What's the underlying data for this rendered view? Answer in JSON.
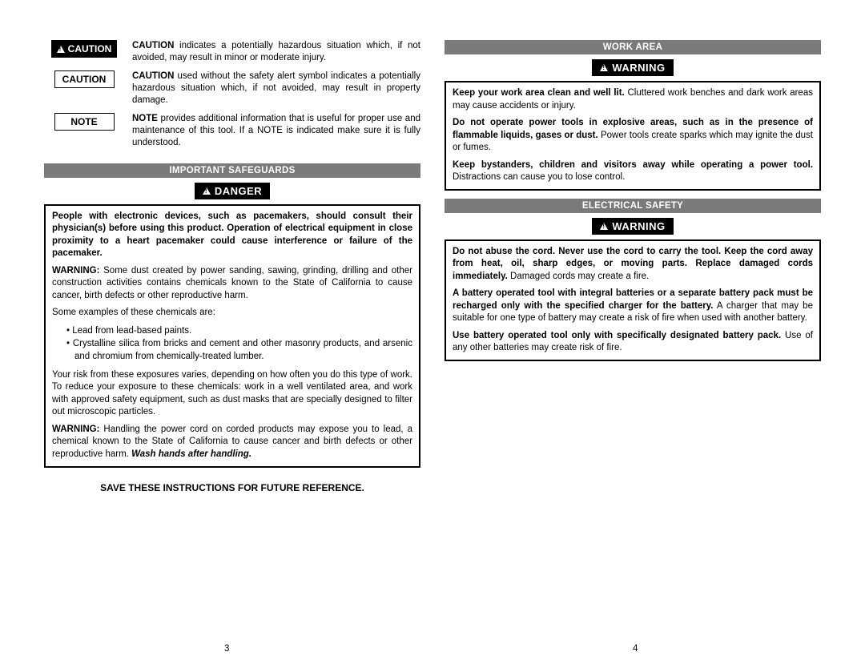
{
  "left": {
    "defs": [
      {
        "label": "CAUTION",
        "style": "alert",
        "text": "<b>CAUTION</b> indicates a potentially hazardous situation which, if not avoided, may result in minor or moderate injury."
      },
      {
        "label": "CAUTION",
        "style": "box",
        "text": "<b>CAUTION</b> used without the safety alert symbol indicates a potentially hazardous situation which, if not avoided, may result in property damage."
      },
      {
        "label": "NOTE",
        "style": "box",
        "text": "<b>NOTE</b> provides additional information that is useful for proper use and maintenance of this tool. If a NOTE is indicated make sure it is fully understood."
      }
    ],
    "section_title": "IMPORTANT SAFEGUARDS",
    "alert_label": "DANGER",
    "box_paras": [
      "<b>People with electronic devices, such as pacemakers, should consult their physician(s) before using this product. Operation of electrical equipment in close proximity to a heart pacemaker could cause interference or failure of the pacemaker.</b>",
      "<b>WARNING:</b> Some dust created by power sanding, sawing, grinding, drilling and other construction activities contains chemicals known to the State of California to cause cancer, birth defects or other reproductive harm."
    ],
    "examples_intro": "Some examples of these chemicals are:",
    "examples": [
      "• Lead from lead-based paints.",
      "• Crystalline silica from bricks and cement and other masonry products, and arsenic and chromium from chemically-treated lumber."
    ],
    "risk_para": "Your risk from these exposures varies, depending on how often you do this type of work. To reduce your exposure to these chemicals: work in a well ventilated area, and work with approved safety equipment, such as dust masks that are specially designed to filter out microscopic particles.",
    "cord_para": "<b>WARNING:</b> Handling the power cord on corded products may expose you to lead, a chemical known to the State of California to cause cancer and birth defects or other reproductive harm. <b><i>Wash hands after handling.</i></b>",
    "save_line": "SAVE THESE INSTRUCTIONS FOR FUTURE REFERENCE.",
    "page_num": "3"
  },
  "right": {
    "sections": [
      {
        "title": "WORK AREA",
        "alert": "WARNING",
        "paras": [
          "<b>Keep your work area clean and well lit.</b> Cluttered work benches and dark work areas may cause accidents or injury.",
          "<b>Do not operate power tools in explosive areas, such as in the presence of flammable liquids, gases or dust.</b> Power tools create sparks which may ignite the dust or fumes.",
          "<b>Keep bystanders, children and visitors away while operating a power tool.</b> Distractions can cause you to lose control."
        ]
      },
      {
        "title": "ELECTRICAL SAFETY",
        "alert": "WARNING",
        "paras": [
          "<b>Do not abuse the cord. Never use the cord to carry the tool. Keep the cord away from heat, oil, sharp edges, or moving parts. Replace damaged cords immediately.</b> Damaged cords may create a fire.",
          "<b>A battery operated tool with integral batteries or a separate battery pack must be recharged only with the specified charger for the battery.</b> A charger that may be suitable for one type of battery may create a risk of fire when used with another battery.",
          "<b>Use battery operated tool only with specifically designated battery pack.</b> Use of any other batteries may create risk of fire."
        ]
      }
    ],
    "page_num": "4"
  }
}
